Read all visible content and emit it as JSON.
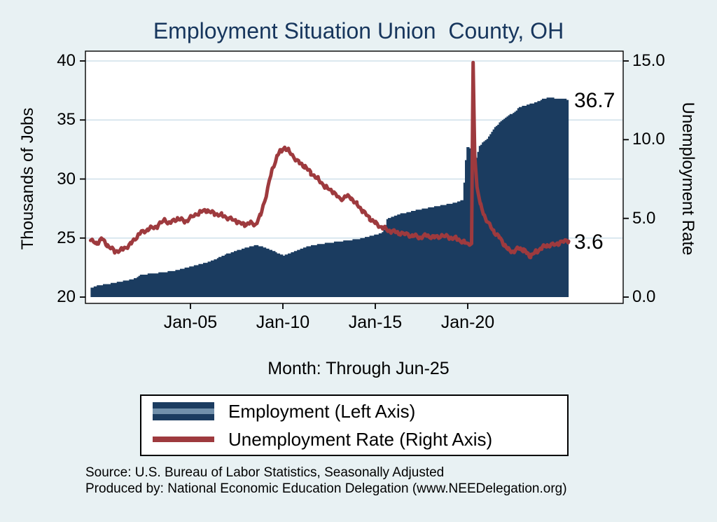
{
  "title": "Employment Situation Union  County, OH",
  "axes": {
    "left_title": "Thousands of Jobs",
    "right_title": "Unemployment Rate",
    "x_title": "Month: Through Jun-25"
  },
  "annotations": {
    "employment_last": "36.7",
    "unemployment_last": "3.6"
  },
  "legend": {
    "employment_label": "Employment (Left Axis)",
    "unemployment_label": "Unemployment Rate (Right Axis)"
  },
  "footer": {
    "source": "Source: U.S. Bureau of Labor Statistics, Seasonally Adjusted",
    "produced_by": "Produced by: National Economic Education Delegation (www.NEEDelegation.org)"
  },
  "colors": {
    "background": "#e8f1f3",
    "title": "#17365d",
    "area": "#1b3c60",
    "area_stripe": "#7190ab",
    "line": "#9e3a3e",
    "grid": "#cfe0ea",
    "plot_bg": "#ffffff",
    "axis": "#000000"
  },
  "chart_data": {
    "type": "area+line",
    "title": "Employment Situation Union  County, OH",
    "x_domain_years": [
      1999.6,
      2025.46
    ],
    "x_ticks": [
      {
        "year": 2005,
        "label": "Jan-05"
      },
      {
        "year": 2010,
        "label": "Jan-10"
      },
      {
        "year": 2015,
        "label": "Jan-15"
      },
      {
        "year": 2020,
        "label": "Jan-20"
      }
    ],
    "xlabel": "Month: Through Jun-25",
    "left_axis": {
      "title": "Thousands of Jobs",
      "range": [
        20,
        40
      ],
      "ticks": [
        20,
        25,
        30,
        35,
        40
      ]
    },
    "right_axis": {
      "title": "Unemployment Rate",
      "range": [
        0,
        15
      ],
      "ticks": [
        {
          "value": 0,
          "label": "0.0"
        },
        {
          "value": 5,
          "label": "5.0"
        },
        {
          "value": 10,
          "label": "10.0"
        },
        {
          "value": 15,
          "label": "15.0"
        }
      ]
    },
    "grid": true,
    "legend_position": "bottom",
    "series": [
      {
        "name": "Employment (Left Axis)",
        "axis": "left",
        "type": "area",
        "last_value": 36.7,
        "points": [
          [
            1999.6,
            20.8
          ],
          [
            2000.0,
            21.0
          ],
          [
            2000.8,
            21.2
          ],
          [
            2001.5,
            21.4
          ],
          [
            2002.0,
            21.6
          ],
          [
            2002.3,
            21.9
          ],
          [
            2003.0,
            22.0
          ],
          [
            2004.0,
            22.2
          ],
          [
            2005.0,
            22.6
          ],
          [
            2006.0,
            23.0
          ],
          [
            2007.0,
            23.7
          ],
          [
            2007.8,
            24.1
          ],
          [
            2008.5,
            24.4
          ],
          [
            2009.0,
            24.2
          ],
          [
            2009.6,
            23.8
          ],
          [
            2010.0,
            23.5
          ],
          [
            2010.5,
            23.8
          ],
          [
            2011.3,
            24.3
          ],
          [
            2012.0,
            24.5
          ],
          [
            2013.0,
            24.7
          ],
          [
            2014.0,
            24.9
          ],
          [
            2015.0,
            25.3
          ],
          [
            2015.4,
            25.5
          ],
          [
            2015.6,
            26.6
          ],
          [
            2016.2,
            27.0
          ],
          [
            2017.0,
            27.3
          ],
          [
            2018.0,
            27.6
          ],
          [
            2019.0,
            27.9
          ],
          [
            2019.7,
            28.2
          ],
          [
            2019.9,
            32.7
          ],
          [
            2020.2,
            32.6
          ],
          [
            2020.35,
            31.3
          ],
          [
            2020.6,
            32.8
          ],
          [
            2021.0,
            33.4
          ],
          [
            2021.4,
            34.3
          ],
          [
            2021.7,
            34.8
          ],
          [
            2022.0,
            35.2
          ],
          [
            2022.4,
            35.6
          ],
          [
            2022.8,
            36.1
          ],
          [
            2023.2,
            36.3
          ],
          [
            2023.7,
            36.5
          ],
          [
            2024.0,
            36.8
          ],
          [
            2024.4,
            36.9
          ],
          [
            2024.8,
            36.8
          ],
          [
            2025.1,
            36.8
          ],
          [
            2025.46,
            36.7
          ]
        ]
      },
      {
        "name": "Unemployment Rate (Right Axis)",
        "axis": "right",
        "type": "line",
        "last_value": 3.6,
        "points": [
          [
            1999.6,
            3.6
          ],
          [
            1999.9,
            3.4
          ],
          [
            2000.2,
            3.7
          ],
          [
            2000.5,
            3.3
          ],
          [
            2000.9,
            2.9
          ],
          [
            2001.3,
            3.0
          ],
          [
            2001.8,
            3.4
          ],
          [
            2002.2,
            4.0
          ],
          [
            2002.7,
            4.3
          ],
          [
            2003.2,
            4.5
          ],
          [
            2003.6,
            4.9
          ],
          [
            2003.9,
            4.7
          ],
          [
            2004.3,
            5.0
          ],
          [
            2004.7,
            4.8
          ],
          [
            2005.1,
            5.1
          ],
          [
            2005.5,
            5.4
          ],
          [
            2005.9,
            5.5
          ],
          [
            2006.3,
            5.3
          ],
          [
            2006.7,
            5.2
          ],
          [
            2007.1,
            5.0
          ],
          [
            2007.5,
            4.8
          ],
          [
            2007.9,
            4.6
          ],
          [
            2008.2,
            4.7
          ],
          [
            2008.5,
            4.6
          ],
          [
            2008.8,
            5.2
          ],
          [
            2009.1,
            6.5
          ],
          [
            2009.4,
            8.0
          ],
          [
            2009.7,
            9.0
          ],
          [
            2009.9,
            9.3
          ],
          [
            2010.1,
            9.5
          ],
          [
            2010.3,
            9.3
          ],
          [
            2010.6,
            8.9
          ],
          [
            2010.9,
            8.5
          ],
          [
            2011.2,
            8.3
          ],
          [
            2011.5,
            7.9
          ],
          [
            2011.9,
            7.5
          ],
          [
            2012.3,
            7.0
          ],
          [
            2012.7,
            6.7
          ],
          [
            2013.1,
            6.2
          ],
          [
            2013.4,
            6.4
          ],
          [
            2013.7,
            6.3
          ],
          [
            2014.0,
            5.9
          ],
          [
            2014.3,
            5.5
          ],
          [
            2014.7,
            5.0
          ],
          [
            2015.0,
            4.7
          ],
          [
            2015.4,
            4.4
          ],
          [
            2015.8,
            4.2
          ],
          [
            2016.2,
            4.1
          ],
          [
            2016.6,
            4.0
          ],
          [
            2017.0,
            3.9
          ],
          [
            2017.4,
            3.8
          ],
          [
            2017.8,
            3.9
          ],
          [
            2018.2,
            3.8
          ],
          [
            2018.6,
            3.9
          ],
          [
            2019.0,
            3.8
          ],
          [
            2019.4,
            3.7
          ],
          [
            2019.8,
            3.5
          ],
          [
            2020.1,
            3.3
          ],
          [
            2020.21,
            3.4
          ],
          [
            2020.29,
            14.9
          ],
          [
            2020.38,
            9.0
          ],
          [
            2020.5,
            7.0
          ],
          [
            2020.7,
            5.8
          ],
          [
            2020.9,
            5.2
          ],
          [
            2021.1,
            4.7
          ],
          [
            2021.4,
            4.2
          ],
          [
            2021.7,
            3.8
          ],
          [
            2022.0,
            3.3
          ],
          [
            2022.2,
            3.0
          ],
          [
            2022.5,
            2.9
          ],
          [
            2022.8,
            3.1
          ],
          [
            2023.0,
            3.0
          ],
          [
            2023.2,
            2.8
          ],
          [
            2023.4,
            2.6
          ],
          [
            2023.7,
            2.9
          ],
          [
            2024.0,
            3.1
          ],
          [
            2024.3,
            3.3
          ],
          [
            2024.6,
            3.3
          ],
          [
            2024.9,
            3.4
          ],
          [
            2025.1,
            3.5
          ],
          [
            2025.46,
            3.6
          ]
        ]
      }
    ]
  }
}
